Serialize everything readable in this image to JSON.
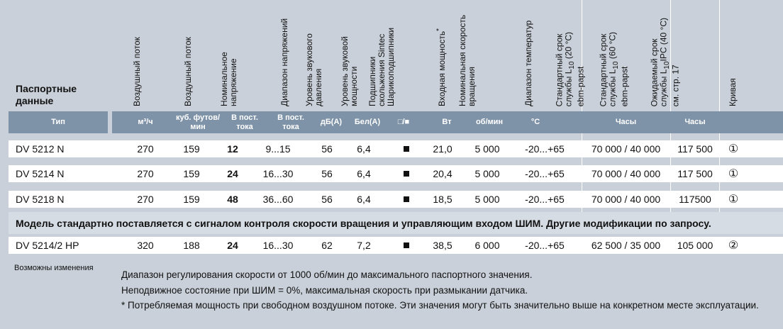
{
  "header": {
    "section_title": "Паспортные данные",
    "columns": {
      "airflow_m3": "Воздушный поток",
      "airflow_cfm": "Воздушный поток",
      "nominal_voltage": "Номинальное напряжение",
      "voltage_range": "Диапазон напряжений",
      "sound_pressure": [
        "Уровень звукового",
        "давления"
      ],
      "sound_power": [
        "Уровень звуковой",
        "мощности"
      ],
      "bearings": [
        "Подшипники",
        "скольжения Sintec",
        "Шарикоподшипники"
      ],
      "input_power": "Входная мощность",
      "input_power_mark": "*",
      "nominal_speed": [
        "Номинальная скорость",
        "вращения"
      ],
      "temp_range": "Диапазон температур",
      "life20_l1": "Стандартный срок",
      "life20_l2_pre": "службы L",
      "life20_l2_sub": "10",
      "life20_l2_post": " (20 °C)",
      "life20_l3": "ebm-papst",
      "life60_l1": "Стандартный срок",
      "life60_l2_pre": "службы L",
      "life60_l2_sub": "10",
      "life60_l2_post": " (60 °C)",
      "life60_l3": "ebm-papst",
      "exp_l1": "Ожидаемый срок",
      "exp_l2_pre": "службы L",
      "exp_l2_sub": "10",
      "exp_l2_post": "IPC (40 °C)",
      "exp_l3": "см. стр. 17",
      "curve": "Кривая"
    }
  },
  "units": {
    "type": "Тип",
    "m3h": "м³/ч",
    "cfm": "куб. футов/ мин",
    "vdc1": "В пост. тока",
    "vdc2": "В пост. тока",
    "dba": "дБ(А)",
    "bela": "Бел(А)",
    "bearing_icons": "□/■",
    "w": "Вт",
    "rpm": "об/мин",
    "deg": "°C",
    "hours1": "Часы",
    "hours2": "Часы"
  },
  "rows": [
    {
      "type": "DV 5212 N",
      "m3h": "270",
      "cfm": "159",
      "nominal": "12",
      "range": "9...15",
      "dba": "56",
      "bela": "6,4",
      "power": "21,0",
      "rpm": "5 000",
      "temp": "-20...+65",
      "life": "70 000 / 40 000",
      "exp": "117 500",
      "curve": "①"
    },
    {
      "type": "DV 5214 N",
      "m3h": "270",
      "cfm": "159",
      "nominal": "24",
      "range": "16...30",
      "dba": "56",
      "bela": "6,4",
      "power": "20,4",
      "rpm": "5 000",
      "temp": "-20...+65",
      "life": "70 000 / 40 000",
      "exp": "117 500",
      "curve": "①"
    },
    {
      "type": "DV 5218 N",
      "m3h": "270",
      "cfm": "159",
      "nominal": "48",
      "range": "36...60",
      "dba": "56",
      "bela": "6,4",
      "power": "18,5",
      "rpm": "5 000",
      "temp": "-20...+65",
      "life": "70 000 / 40 000",
      "exp": "117500",
      "curve": "①"
    }
  ],
  "note": "Модель стандартно поставляется с сигналом контроля скорости вращения и управляющим входом ШИМ. Другие модификации по запросу.",
  "row4": {
    "type": "DV 5214/2 HP",
    "m3h": "320",
    "cfm": "188",
    "nominal": "24",
    "range": "16...30",
    "dba": "62",
    "bela": "7,2",
    "power": "38,5",
    "rpm": "6 000",
    "temp": "-20...+65",
    "life": "62 500 / 35 000",
    "exp": "105 000",
    "curve": "②"
  },
  "footer": {
    "changes": "Возможны изменения",
    "line1": "Диапазон регулирования скорости от 1000 об/мин до максимального паспортного значения.",
    "line2": "Неподвижное состояние при ШИМ = 0%, максимальная скорость при размыкании датчика.",
    "line3": "* Потребляемая мощность при свободном воздушном потоке. Эти значения могут быть значительно выше на конкретном месте эксплуатации."
  }
}
